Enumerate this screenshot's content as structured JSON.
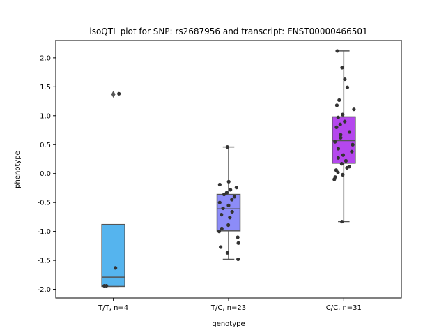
{
  "chart_data": {
    "type": "box",
    "title": "isoQTL plot for SNP: rs2687956 and transcript: ENST00000466501",
    "xlabel": "genotype",
    "ylabel": "phenotype",
    "ylim": [
      -2.15,
      2.3
    ],
    "yticks": [
      "-2.0",
      "-1.5",
      "-1.0",
      "-0.5",
      "0.0",
      "0.5",
      "1.0",
      "1.5",
      "2.0"
    ],
    "grid": false,
    "categories": [
      "T/T, n=4",
      "T/C, n=23",
      "C/C, n=31"
    ],
    "colors": [
      "#55b4ee",
      "#8c8cf8",
      "#b547ee"
    ],
    "boxes": [
      {
        "q1": -1.95,
        "median": -1.79,
        "q3": -0.88,
        "whisker_low": -1.95,
        "whisker_high": -0.88,
        "outliers": [
          1.37
        ]
      },
      {
        "q1": -0.99,
        "median": -0.61,
        "q3": -0.36,
        "whisker_low": -1.48,
        "whisker_high": 0.46,
        "outliers": []
      },
      {
        "q1": 0.18,
        "median": 0.57,
        "q3": 0.98,
        "whisker_low": -0.83,
        "whisker_high": 2.12,
        "outliers": []
      }
    ],
    "points": [
      [
        -1.94,
        -1.94,
        -1.63,
        1.38
      ],
      [
        0.46,
        -0.14,
        -0.19,
        -0.24,
        -0.28,
        -0.33,
        -0.36,
        -0.4,
        -0.45,
        -0.5,
        -0.55,
        -0.6,
        -0.66,
        -0.71,
        -0.76,
        -0.89,
        -0.95,
        -1.0,
        -1.1,
        -1.2,
        -1.27,
        -1.37,
        -1.48
      ],
      [
        2.12,
        1.83,
        1.63,
        1.49,
        1.27,
        1.18,
        1.11,
        1.02,
        0.97,
        0.9,
        0.85,
        0.8,
        0.72,
        0.67,
        0.62,
        0.55,
        0.5,
        0.43,
        0.38,
        0.32,
        0.27,
        0.22,
        0.17,
        0.12,
        0.1,
        0.06,
        0.02,
        -0.02,
        -0.06,
        -0.1,
        -0.83
      ]
    ]
  }
}
